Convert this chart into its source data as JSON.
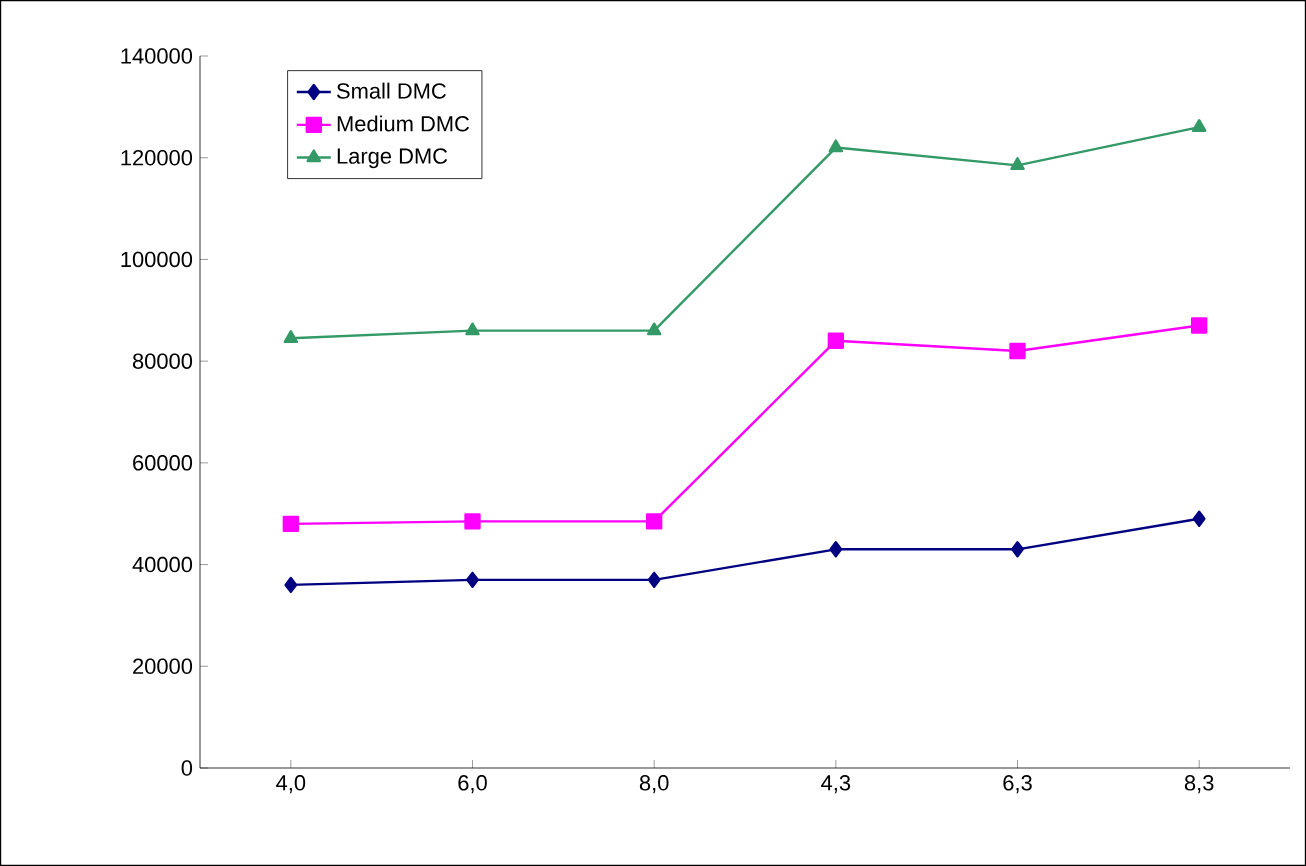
{
  "chart_data": {
    "type": "line",
    "categories": [
      "4,0",
      "6,0",
      "8,0",
      "4,3",
      "6,3",
      "8,3"
    ],
    "series": [
      {
        "name": "Small DMC",
        "color": "#000080",
        "marker": "diamond",
        "values": [
          36000,
          37000,
          37000,
          43000,
          43000,
          49000
        ]
      },
      {
        "name": "Medium DMC",
        "color": "#ff00ff",
        "marker": "square",
        "values": [
          48000,
          48500,
          48500,
          84000,
          82000,
          87000
        ]
      },
      {
        "name": "Large DMC",
        "color": "#339966",
        "marker": "triangle",
        "values": [
          84500,
          86000,
          86000,
          122000,
          118500,
          126000
        ]
      }
    ],
    "ylim": [
      0,
      140000
    ],
    "yticks": [
      0,
      20000,
      40000,
      60000,
      80000,
      100000,
      120000,
      140000
    ],
    "grid": false,
    "legend": "top left",
    "line_style": "solid"
  }
}
